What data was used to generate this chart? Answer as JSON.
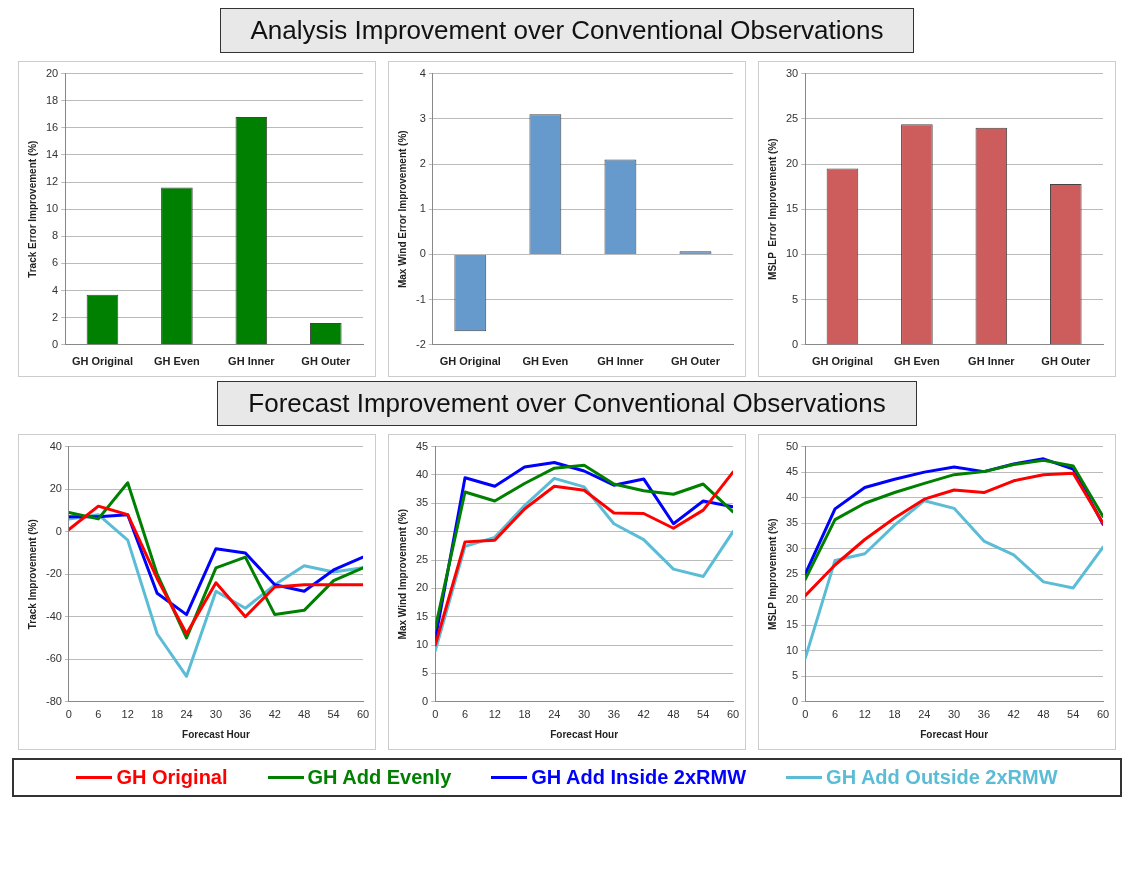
{
  "chart_data": [
    {
      "type": "bar",
      "title": "Analysis Improvement over Conventional Observations",
      "ylabel": "Track Error Improvement (%)",
      "categories": [
        "GH Original",
        "GH Even",
        "GH Inner",
        "GH Outer"
      ],
      "values": [
        3.7,
        11.6,
        16.8,
        1.6
      ],
      "color": "#008000",
      "ylim": [
        0,
        20
      ],
      "yticks": [
        0,
        2,
        4,
        6,
        8,
        10,
        12,
        14,
        16,
        18,
        20
      ],
      "grid": "y"
    },
    {
      "type": "bar",
      "ylabel": "Max Wind Error Improvement (%)",
      "categories": [
        "GH Original",
        "GH Even",
        "GH Inner",
        "GH Outer"
      ],
      "values": [
        -1.7,
        3.1,
        2.1,
        0.07
      ],
      "color": "#6699cc",
      "ylim": [
        -2,
        4
      ],
      "yticks": [
        -2,
        -1,
        0,
        1,
        2,
        3,
        4
      ],
      "grid": "y"
    },
    {
      "type": "bar",
      "ylabel": "MSLP  Error Improvement (%)",
      "categories": [
        "GH Original",
        "GH Even",
        "GH Inner",
        "GH Outer"
      ],
      "values": [
        19.5,
        24.4,
        24.0,
        17.8
      ],
      "color": "#cd5c5c",
      "ylim": [
        0,
        30
      ],
      "yticks": [
        0,
        5,
        10,
        15,
        20,
        25,
        30
      ],
      "grid": "y"
    },
    {
      "type": "line",
      "title": "Forecast Improvement over Conventional Observations",
      "xlabel": "Forecast Hour",
      "ylabel": "Track Improvement (%)",
      "x": [
        0,
        6,
        12,
        18,
        24,
        30,
        36,
        42,
        48,
        54,
        60
      ],
      "xlim": [
        0,
        60
      ],
      "xticks": [
        0,
        6,
        12,
        18,
        24,
        30,
        36,
        42,
        48,
        54,
        60
      ],
      "ylim": [
        -80,
        40
      ],
      "yticks": [
        -80,
        -60,
        -40,
        -20,
        0,
        20,
        40
      ],
      "grid": "y",
      "legend": "bottom",
      "marker": "none",
      "series": [
        {
          "name": "GH Original",
          "color": "#ff0000",
          "values": [
            1,
            12,
            8,
            -22,
            -48,
            -24,
            -40,
            -26,
            -25,
            -25,
            -25
          ]
        },
        {
          "name": "GH Add Evenly",
          "color": "#008000",
          "values": [
            9,
            6,
            23,
            -20,
            -50,
            -17,
            -12,
            -39,
            -37,
            -23,
            -17
          ]
        },
        {
          "name": "GH Add Inside 2xRMW",
          "color": "#0000ff",
          "values": [
            7,
            7,
            8,
            -29,
            -39,
            -8,
            -10,
            -25,
            -28,
            -18,
            -12
          ]
        },
        {
          "name": "GH Add Outside 2xRMW",
          "color": "#5bbcd6",
          "values": [
            6,
            8,
            -4,
            -48,
            -68,
            -28,
            -36,
            -25,
            -16,
            -19,
            -17
          ]
        }
      ]
    },
    {
      "type": "line",
      "xlabel": "Forecast Hour",
      "ylabel": "Max Wind Improvement (%)",
      "x": [
        0,
        6,
        12,
        18,
        24,
        30,
        36,
        42,
        48,
        54,
        60
      ],
      "xlim": [
        0,
        60
      ],
      "xticks": [
        0,
        6,
        12,
        18,
        24,
        30,
        36,
        42,
        48,
        54,
        60
      ],
      "ylim": [
        0,
        45
      ],
      "yticks": [
        0,
        5,
        10,
        15,
        20,
        25,
        30,
        35,
        40,
        45
      ],
      "grid": "y",
      "legend": "bottom",
      "marker": "none",
      "series": [
        {
          "name": "GH Original",
          "color": "#ff0000",
          "values": [
            10,
            28.2,
            28.5,
            34,
            38,
            37.3,
            33.3,
            33.2,
            30.6,
            33.8,
            40.5
          ]
        },
        {
          "name": "GH Add Evenly",
          "color": "#008000",
          "values": [
            13,
            37,
            35.4,
            38.5,
            41.2,
            41.7,
            38.4,
            37.2,
            36.6,
            38.4,
            33.5
          ]
        },
        {
          "name": "GH Add Inside 2xRMW",
          "color": "#0000ff",
          "values": [
            11,
            39.5,
            38,
            41.4,
            42.2,
            40.7,
            38.2,
            39.3,
            31.4,
            35.4,
            34.4
          ]
        },
        {
          "name": "GH Add Outside 2xRMW",
          "color": "#5bbcd6",
          "values": [
            9,
            27.4,
            29,
            34.6,
            39.4,
            37.9,
            31.4,
            28.6,
            23.4,
            22.1,
            30
          ]
        }
      ]
    },
    {
      "type": "line",
      "xlabel": "Forecast Hour",
      "ylabel": "MSLP Improvement (%)",
      "x": [
        0,
        6,
        12,
        18,
        24,
        30,
        36,
        42,
        48,
        54,
        60
      ],
      "xlim": [
        0,
        60
      ],
      "xticks": [
        0,
        6,
        12,
        18,
        24,
        30,
        36,
        42,
        48,
        54,
        60
      ],
      "ylim": [
        0,
        50
      ],
      "yticks": [
        0,
        5,
        10,
        15,
        20,
        25,
        30,
        35,
        40,
        45,
        50
      ],
      "grid": "y",
      "legend": "bottom",
      "marker": "none",
      "series": [
        {
          "name": "GH Original",
          "color": "#ff0000",
          "values": [
            20.8,
            26.8,
            31.8,
            36,
            39.7,
            41.5,
            41,
            43.3,
            44.5,
            44.8,
            35
          ]
        },
        {
          "name": "GH Add Evenly",
          "color": "#008000",
          "values": [
            24,
            35.7,
            38.9,
            41,
            42.8,
            44.5,
            45.1,
            46.5,
            47.3,
            46.2,
            36.3
          ]
        },
        {
          "name": "GH Add Inside 2xRMW",
          "color": "#0000ff",
          "values": [
            25,
            37.8,
            42,
            43.6,
            45,
            46,
            45.1,
            46.6,
            47.6,
            45.6,
            34.8
          ]
        },
        {
          "name": "GH Add Outside 2xRMW",
          "color": "#5bbcd6",
          "values": [
            8.5,
            27.7,
            29,
            34.6,
            39.4,
            37.9,
            31.5,
            28.8,
            23.5,
            22.3,
            30.3
          ]
        }
      ]
    }
  ]
}
